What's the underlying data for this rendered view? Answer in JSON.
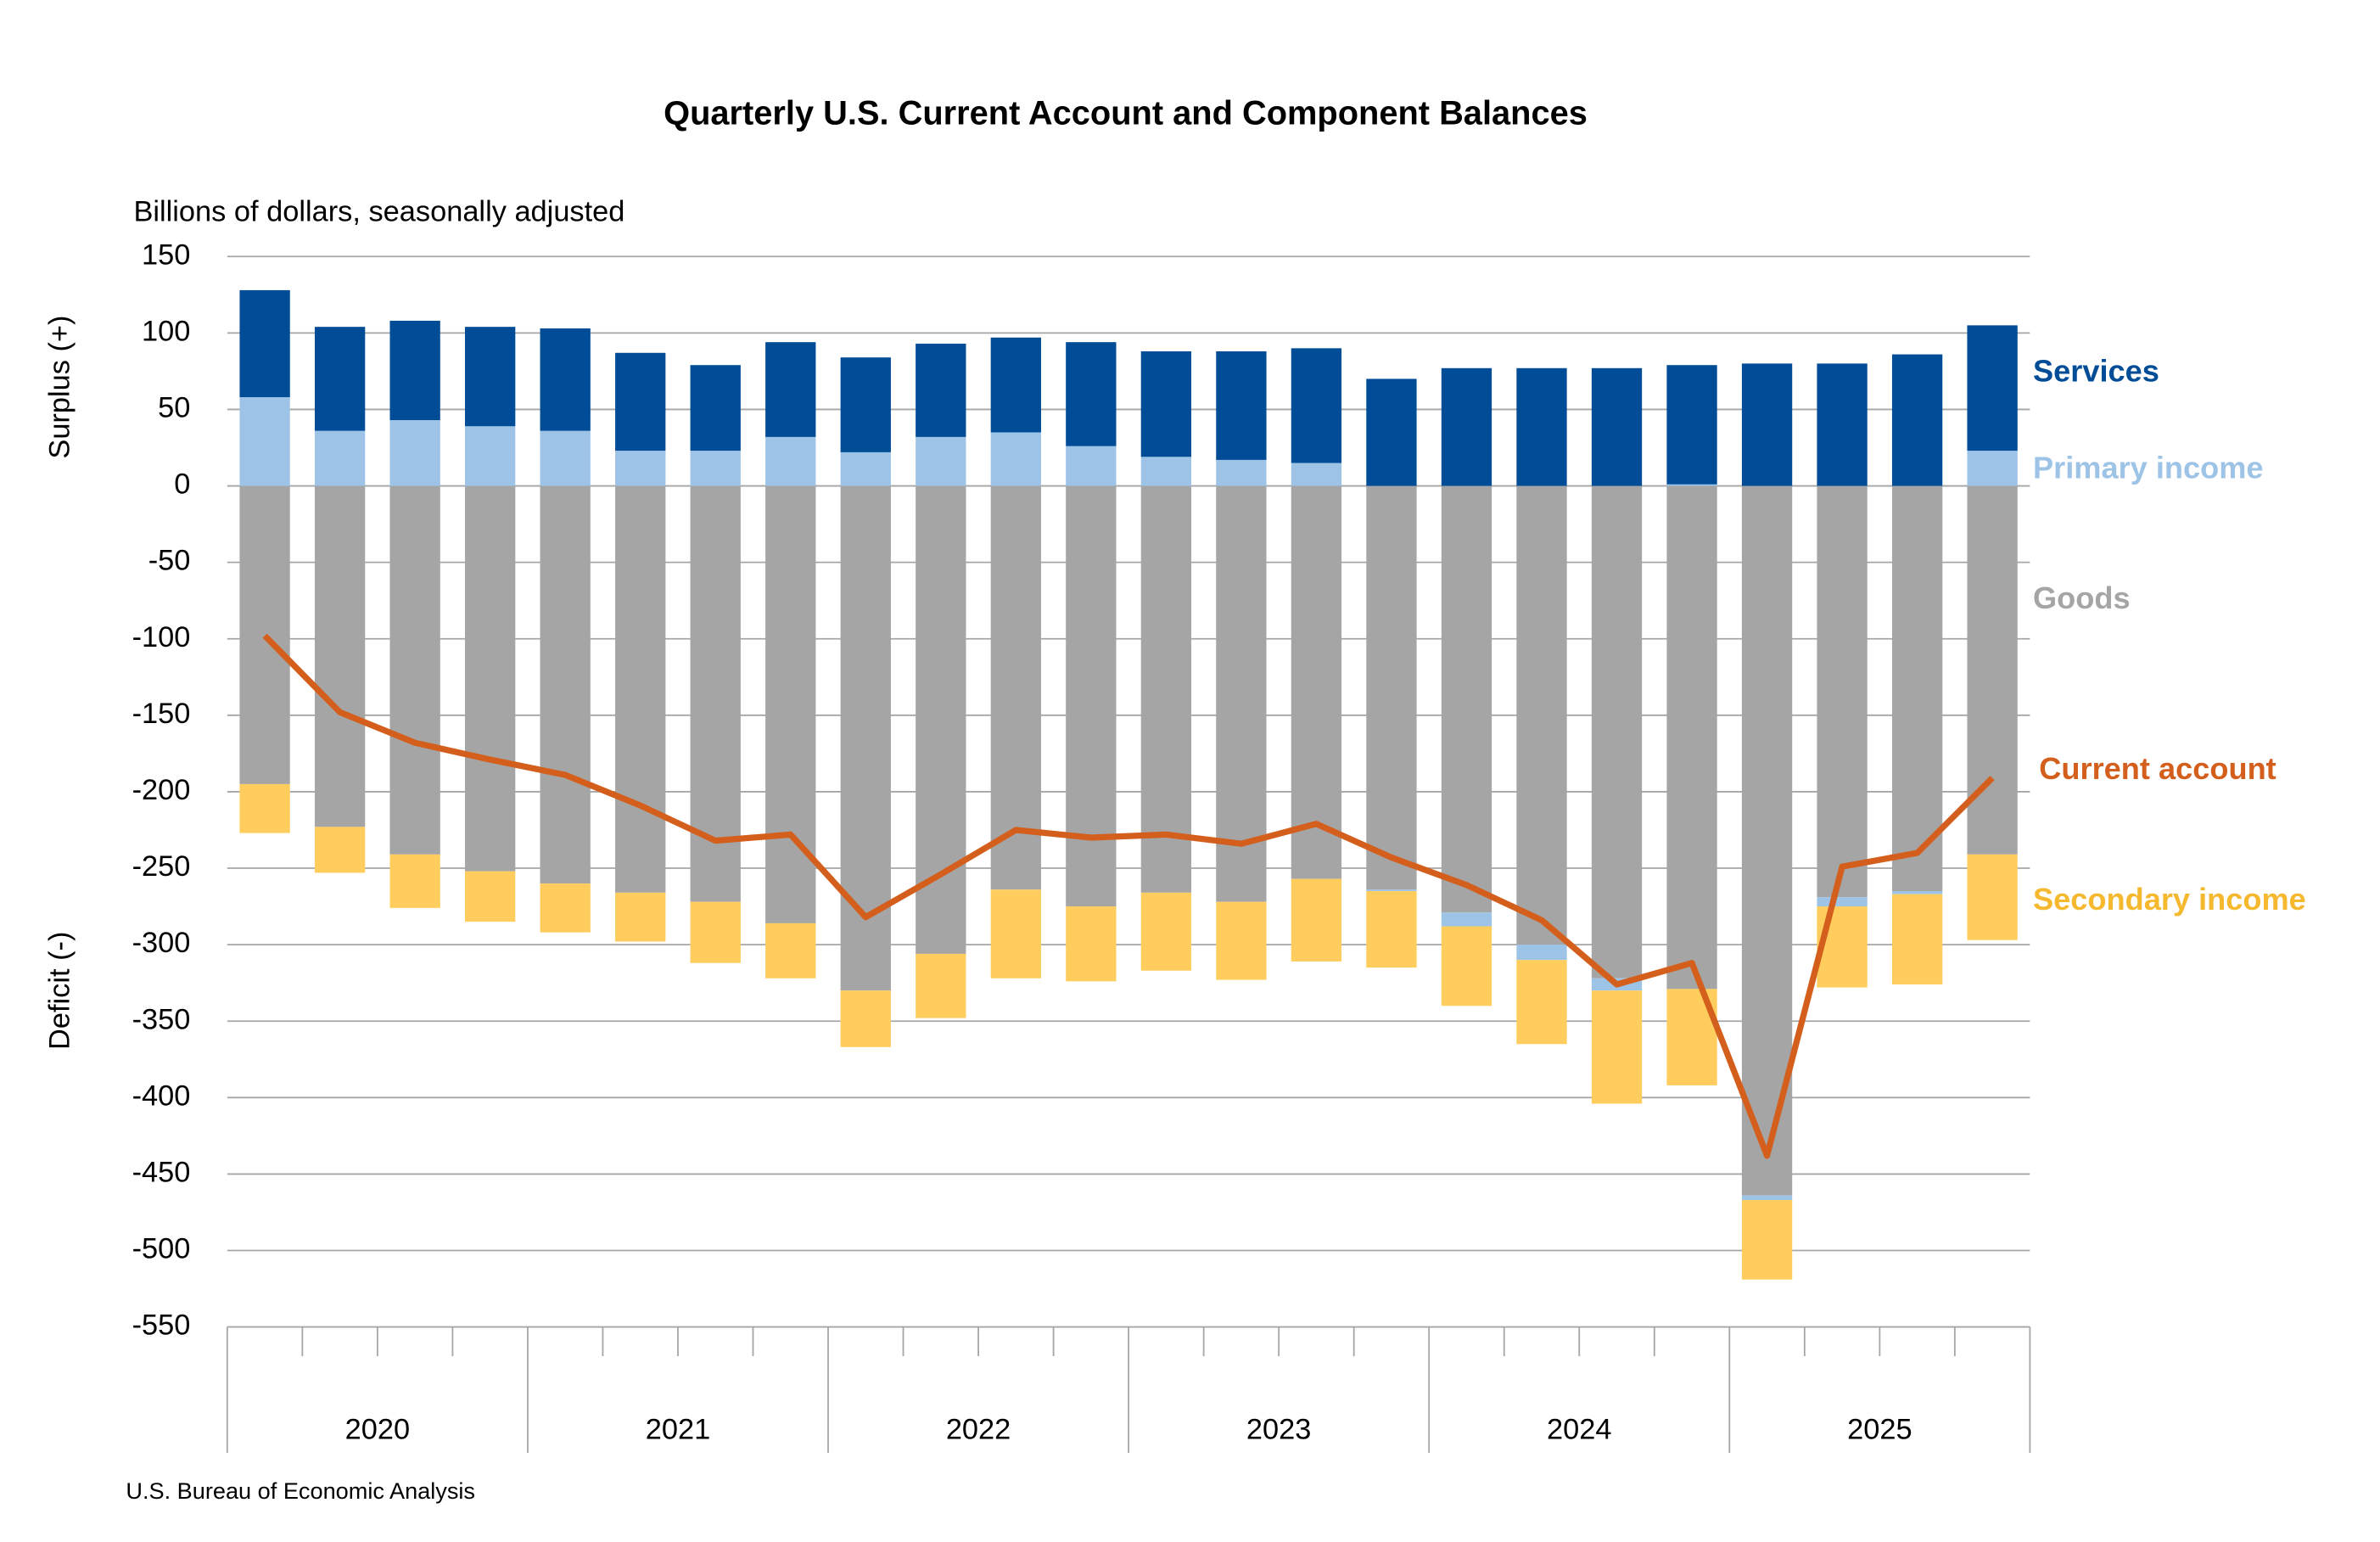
{
  "chart_data": {
    "type": "bar_line",
    "title": "Quarterly U.S. Current Account and Component Balances",
    "subtitle": "Billions of dollars, seasonally adjusted",
    "y_axis_label_top": "Surplus (+)",
    "y_axis_label_bottom": "Deficit (-)",
    "source": "U.S. Bureau of Economic Analysis",
    "categories": [
      null,
      null,
      null,
      null,
      null,
      null,
      null,
      null,
      null,
      null,
      null,
      null,
      null,
      null,
      null,
      null,
      null,
      null,
      null,
      null,
      null,
      null,
      null,
      null
    ],
    "years": [
      "2020",
      "2021",
      "2022",
      "2023",
      "2024",
      "2025"
    ],
    "ylim": [
      -550,
      150
    ],
    "yticks": [
      150,
      100,
      50,
      0,
      -50,
      -100,
      -150,
      -200,
      -250,
      -300,
      -350,
      -400,
      -450,
      -500,
      -550
    ],
    "grid": true,
    "series": [
      {
        "name": "Goods",
        "color": "#a5a5a5",
        "values": [
          -195,
          -223,
          -241,
          -252,
          -260,
          -266,
          -272,
          -286,
          -330,
          -306,
          -264,
          -275,
          -266,
          -272,
          -257,
          -264,
          -279,
          -300,
          -322,
          -329,
          -464,
          -269,
          -265,
          -241
        ]
      },
      {
        "name": "Primary income",
        "color": "#9dc3e6",
        "values": [
          58,
          36,
          43,
          39,
          36,
          23,
          23,
          32,
          22,
          32,
          35,
          26,
          19,
          17,
          15,
          -1,
          -9,
          -10,
          -8,
          1,
          -3,
          -6,
          -2,
          23
        ]
      },
      {
        "name": "Services",
        "color": "#004c97",
        "values": [
          70,
          68,
          65,
          65,
          67,
          64,
          56,
          62,
          62,
          61,
          62,
          68,
          69,
          71,
          75,
          70,
          77,
          77,
          77,
          78,
          80,
          80,
          86,
          82
        ]
      },
      {
        "name": "Secondary income",
        "color": "#ffcd5e",
        "label_color": "#f5b82e",
        "values": [
          -32,
          -30,
          -35,
          -33,
          -32,
          -32,
          -40,
          -36,
          -37,
          -42,
          -58,
          -49,
          -51,
          -51,
          -54,
          -50,
          -52,
          -55,
          -74,
          -63,
          -52,
          -53,
          -59,
          -56
        ]
      },
      {
        "name": "Current account",
        "type": "line",
        "color": "#d45f1d",
        "values": [
          -98,
          -148,
          -168,
          -179,
          -189,
          -209,
          -232,
          -228,
          -282,
          -254,
          -225,
          -230,
          -228,
          -234,
          -221,
          -243,
          -261,
          -284,
          -326,
          -312,
          -438,
          -249,
          -240,
          -191
        ]
      }
    ]
  }
}
